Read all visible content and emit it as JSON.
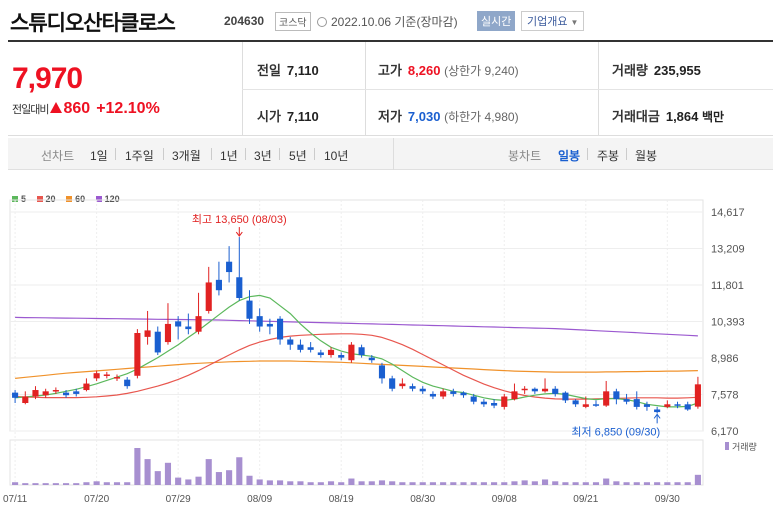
{
  "header": {
    "stock_name": "스튜디오산타클로스",
    "stock_code": "204630",
    "market_badge": "코스닥",
    "date_text": "2022.10.06 기준(장마감)",
    "realtime_label": "실시간",
    "company_info_label": "기업개요"
  },
  "quote": {
    "price": "7,970",
    "change_label": "전일대비",
    "change_value": "860",
    "change_percent": "+12.10%",
    "prev_close_label": "전일",
    "prev_close": "7,110",
    "open_label": "시가",
    "open": "7,110",
    "high_label": "고가",
    "high": "8,260",
    "upper_limit_text": "(상한가 9,240)",
    "low_label": "저가",
    "low": "7,030",
    "lower_limit_text": "(하한가 4,980)",
    "volume_label": "거래량",
    "volume": "235,955",
    "amount_label": "거래대금",
    "amount": "1,864",
    "amount_unit": "백만",
    "up_color": "#e12222",
    "down_color": "#1a5fd0"
  },
  "period_bar": {
    "line_chart_label": "선차트",
    "line_periods": [
      "1일",
      "1주일",
      "3개월",
      "1년",
      "3년",
      "5년",
      "10년"
    ],
    "candle_chart_label": "봉차트",
    "candle_periods": [
      "일봉",
      "주봉",
      "월봉"
    ],
    "selected_candle": "일봉"
  },
  "chart_data": {
    "type": "candlestick",
    "legend": [
      {
        "name": "5",
        "color": "#5cb85c"
      },
      {
        "name": "20",
        "color": "#e8574f"
      },
      {
        "name": "60",
        "color": "#f0922b"
      },
      {
        "name": "120",
        "color": "#9b59d0"
      }
    ],
    "y_ticks": [
      "14,617",
      "13,209",
      "11,801",
      "10,393",
      "8,986",
      "7,578",
      "6,170"
    ],
    "y_min": 6170,
    "y_max": 14617,
    "x_labels": [
      "07/11",
      "07/20",
      "07/29",
      "08/09",
      "08/19",
      "08/30",
      "09/08",
      "09/21",
      "09/30"
    ],
    "x_label_index": [
      0,
      8,
      16,
      24,
      32,
      40,
      48,
      56,
      64
    ],
    "max_annotation": "최고 13,650 (08/03)",
    "min_annotation": "최저 6,850 (09/30)",
    "volume_label": "거래량",
    "candles": [
      [
        7650,
        7450,
        7750,
        7250
      ],
      [
        7250,
        7500,
        7700,
        7200
      ],
      [
        7500,
        7750,
        7900,
        7400
      ],
      [
        7550,
        7700,
        7800,
        7450
      ],
      [
        7700,
        7750,
        7850,
        7600
      ],
      [
        7650,
        7550,
        7750,
        7450
      ],
      [
        7700,
        7600,
        7800,
        7500
      ],
      [
        7750,
        8000,
        8200,
        7700
      ],
      [
        8200,
        8400,
        8500,
        8100
      ],
      [
        8300,
        8350,
        8450,
        8200
      ],
      [
        8200,
        8250,
        8350,
        8100
      ],
      [
        8150,
        7900,
        8250,
        7800
      ],
      [
        8300,
        9950,
        10100,
        8200
      ],
      [
        9800,
        10050,
        10800,
        9500
      ],
      [
        10000,
        9200,
        10200,
        9100
      ],
      [
        9600,
        10300,
        11100,
        9500
      ],
      [
        10400,
        10200,
        10600,
        9700
      ],
      [
        10200,
        10100,
        10700,
        9900
      ],
      [
        10000,
        10600,
        11500,
        9900
      ],
      [
        10800,
        11900,
        12500,
        10700
      ],
      [
        12000,
        11600,
        12700,
        11400
      ],
      [
        12700,
        12300,
        13300,
        11900
      ],
      [
        12100,
        11300,
        13650,
        11200
      ],
      [
        11200,
        10500,
        11600,
        10300
      ],
      [
        10600,
        10200,
        10900,
        10000
      ],
      [
        10300,
        10200,
        10500,
        9900
      ],
      [
        10500,
        9700,
        10600,
        9500
      ],
      [
        9700,
        9500,
        9800,
        9300
      ],
      [
        9500,
        9300,
        9700,
        9200
      ],
      [
        9400,
        9300,
        9600,
        9200
      ],
      [
        9200,
        9100,
        9300,
        9000
      ],
      [
        9100,
        9300,
        9400,
        9000
      ],
      [
        9100,
        9000,
        9200,
        8900
      ],
      [
        8900,
        9500,
        9600,
        8800
      ],
      [
        9400,
        9100,
        9500,
        9000
      ],
      [
        9000,
        8900,
        9100,
        8800
      ],
      [
        8700,
        8200,
        8800,
        8000
      ],
      [
        8200,
        7800,
        8300,
        7700
      ],
      [
        7900,
        8000,
        8200,
        7800
      ],
      [
        7900,
        7800,
        8000,
        7700
      ],
      [
        7800,
        7700,
        7900,
        7600
      ],
      [
        7600,
        7500,
        7700,
        7400
      ],
      [
        7500,
        7700,
        7800,
        7400
      ],
      [
        7700,
        7600,
        7800,
        7500
      ],
      [
        7650,
        7550,
        7700,
        7450
      ],
      [
        7500,
        7300,
        7600,
        7200
      ],
      [
        7300,
        7200,
        7400,
        7100
      ],
      [
        7250,
        7150,
        7400,
        7050
      ],
      [
        7100,
        7500,
        7600,
        7000
      ],
      [
        7400,
        7700,
        8000,
        7350
      ],
      [
        7750,
        7800,
        7900,
        7600
      ],
      [
        7800,
        7700,
        7850,
        7600
      ],
      [
        7700,
        7800,
        8200,
        7650
      ],
      [
        7800,
        7600,
        7900,
        7500
      ],
      [
        7650,
        7350,
        7700,
        7250
      ],
      [
        7350,
        7200,
        7400,
        7100
      ],
      [
        7100,
        7200,
        7500,
        7050
      ],
      [
        7200,
        7150,
        7350,
        7100
      ],
      [
        7150,
        7700,
        8100,
        7100
      ],
      [
        7700,
        7400,
        7800,
        7200
      ],
      [
        7400,
        7300,
        7600,
        7200
      ],
      [
        7400,
        7100,
        7700,
        7000
      ],
      [
        7200,
        7100,
        7300,
        6950
      ],
      [
        7000,
        6900,
        7100,
        6850
      ],
      [
        7100,
        7200,
        7350,
        7050
      ],
      [
        7200,
        7150,
        7300,
        7050
      ],
      [
        7200,
        7000,
        7300,
        6950
      ],
      [
        7110,
        7970,
        8260,
        7030
      ]
    ],
    "ma5": [
      7450,
      7480,
      7520,
      7560,
      7620,
      7700,
      7780,
      7880,
      7990,
      8120,
      8250,
      8380,
      8560,
      8780,
      9000,
      9250,
      9500,
      9780,
      10050,
      10350,
      10650,
      10950,
      11200,
      11350,
      11400,
      11300,
      11000,
      10700,
      10300,
      9950,
      9650,
      9400,
      9250,
      9150,
      9100,
      9050,
      8950,
      8750,
      8500,
      8250,
      8050,
      7900,
      7800,
      7700,
      7650,
      7550,
      7450,
      7380,
      7350,
      7400,
      7480,
      7550,
      7600,
      7620,
      7580,
      7500,
      7420,
      7380,
      7420,
      7420,
      7380,
      7300,
      7200,
      7150,
      7100,
      7100,
      7120,
      7250
    ],
    "ma20": [
      7500,
      7480,
      7470,
      7460,
      7460,
      7460,
      7460,
      7470,
      7490,
      7520,
      7560,
      7620,
      7700,
      7800,
      7900,
      8020,
      8160,
      8320,
      8500,
      8700,
      8900,
      9100,
      9300,
      9470,
      9600,
      9700,
      9780,
      9830,
      9860,
      9880,
      9900,
      9910,
      9920,
      9920,
      9900,
      9860,
      9780,
      9650,
      9500,
      9320,
      9120,
      8920,
      8720,
      8520,
      8320,
      8150,
      7980,
      7840,
      7720,
      7620,
      7540,
      7480,
      7440,
      7410,
      7400,
      7400,
      7400,
      7410,
      7420,
      7430,
      7440,
      7450,
      7450,
      7450,
      7440,
      7440,
      7450,
      7470
    ],
    "ma60": [
      8200,
      8240,
      8280,
      8320,
      8360,
      8400,
      8430,
      8460,
      8490,
      8520,
      8550,
      8580,
      8610,
      8640,
      8670,
      8700,
      8730,
      8760,
      8780,
      8800,
      8820,
      8840,
      8850,
      8860,
      8870,
      8870,
      8870,
      8870,
      8860,
      8850,
      8840,
      8830,
      8820,
      8800,
      8780,
      8760,
      8740,
      8720,
      8700,
      8680,
      8660,
      8640,
      8620,
      8600,
      8580,
      8560,
      8540,
      8520,
      8500,
      8480,
      8470,
      8460,
      8450,
      8440,
      8440,
      8440,
      8440,
      8440,
      8450,
      8450,
      8460,
      8460,
      8470,
      8470,
      8480,
      8480,
      8490,
      8500
    ],
    "ma120": [
      10550,
      10545,
      10540,
      10535,
      10530,
      10525,
      10520,
      10515,
      10510,
      10505,
      10500,
      10495,
      10490,
      10485,
      10480,
      10475,
      10470,
      10465,
      10460,
      10455,
      10450,
      10440,
      10430,
      10420,
      10410,
      10400,
      10390,
      10380,
      10370,
      10360,
      10350,
      10340,
      10330,
      10320,
      10310,
      10300,
      10290,
      10280,
      10270,
      10260,
      10250,
      10240,
      10230,
      10220,
      10210,
      10200,
      10190,
      10180,
      10170,
      10160,
      10150,
      10140,
      10130,
      10120,
      10100,
      10080,
      10060,
      10040,
      10020,
      10000,
      9980,
      9960,
      9940,
      9920,
      9900,
      9880,
      9860,
      9840
    ],
    "volume": [
      3,
      2,
      2,
      2,
      2,
      2,
      2,
      3,
      4,
      3,
      3,
      3,
      40,
      28,
      15,
      24,
      8,
      6,
      9,
      28,
      14,
      16,
      30,
      10,
      6,
      5,
      5,
      4,
      4,
      3,
      3,
      4,
      3,
      7,
      4,
      4,
      5,
      4,
      3,
      3,
      3,
      3,
      3,
      3,
      3,
      3,
      3,
      3,
      3,
      4,
      5,
      4,
      6,
      4,
      3,
      3,
      3,
      3,
      7,
      4,
      3,
      3,
      3,
      3,
      3,
      3,
      3,
      11
    ]
  }
}
